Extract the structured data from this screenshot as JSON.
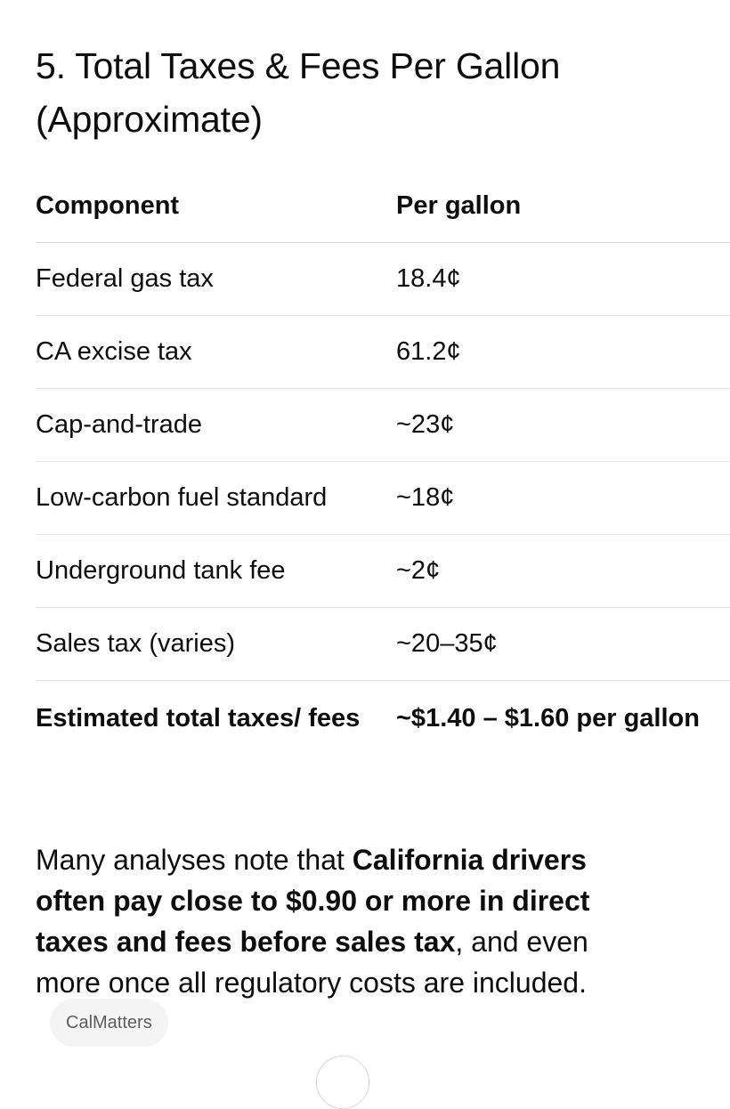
{
  "heading": "5. Total Taxes & Fees Per Gallon (Approximate)",
  "table": {
    "headers": [
      "Component",
      "Per gallon"
    ],
    "rows": [
      [
        "Federal gas tax",
        "18.4¢"
      ],
      [
        "CA excise tax",
        "61.2¢"
      ],
      [
        "Cap-and-trade",
        "~23¢"
      ],
      [
        "Low-carbon fuel standard",
        "~18¢"
      ],
      [
        "Underground tank fee",
        "~2¢"
      ],
      [
        "Sales tax (varies)",
        "~20–35¢"
      ]
    ],
    "total": [
      "Estimated total taxes/ fees",
      "~$1.40 – $1.60 per gallon"
    ]
  },
  "paragraph": {
    "intro": "Many analyses note that ",
    "bold": "California drivers often pay close to $0.90 or more in direct taxes and fees before sales tax",
    "rest": ", and even more once all regulatory costs are included.",
    "source_label": "CalMatters"
  }
}
